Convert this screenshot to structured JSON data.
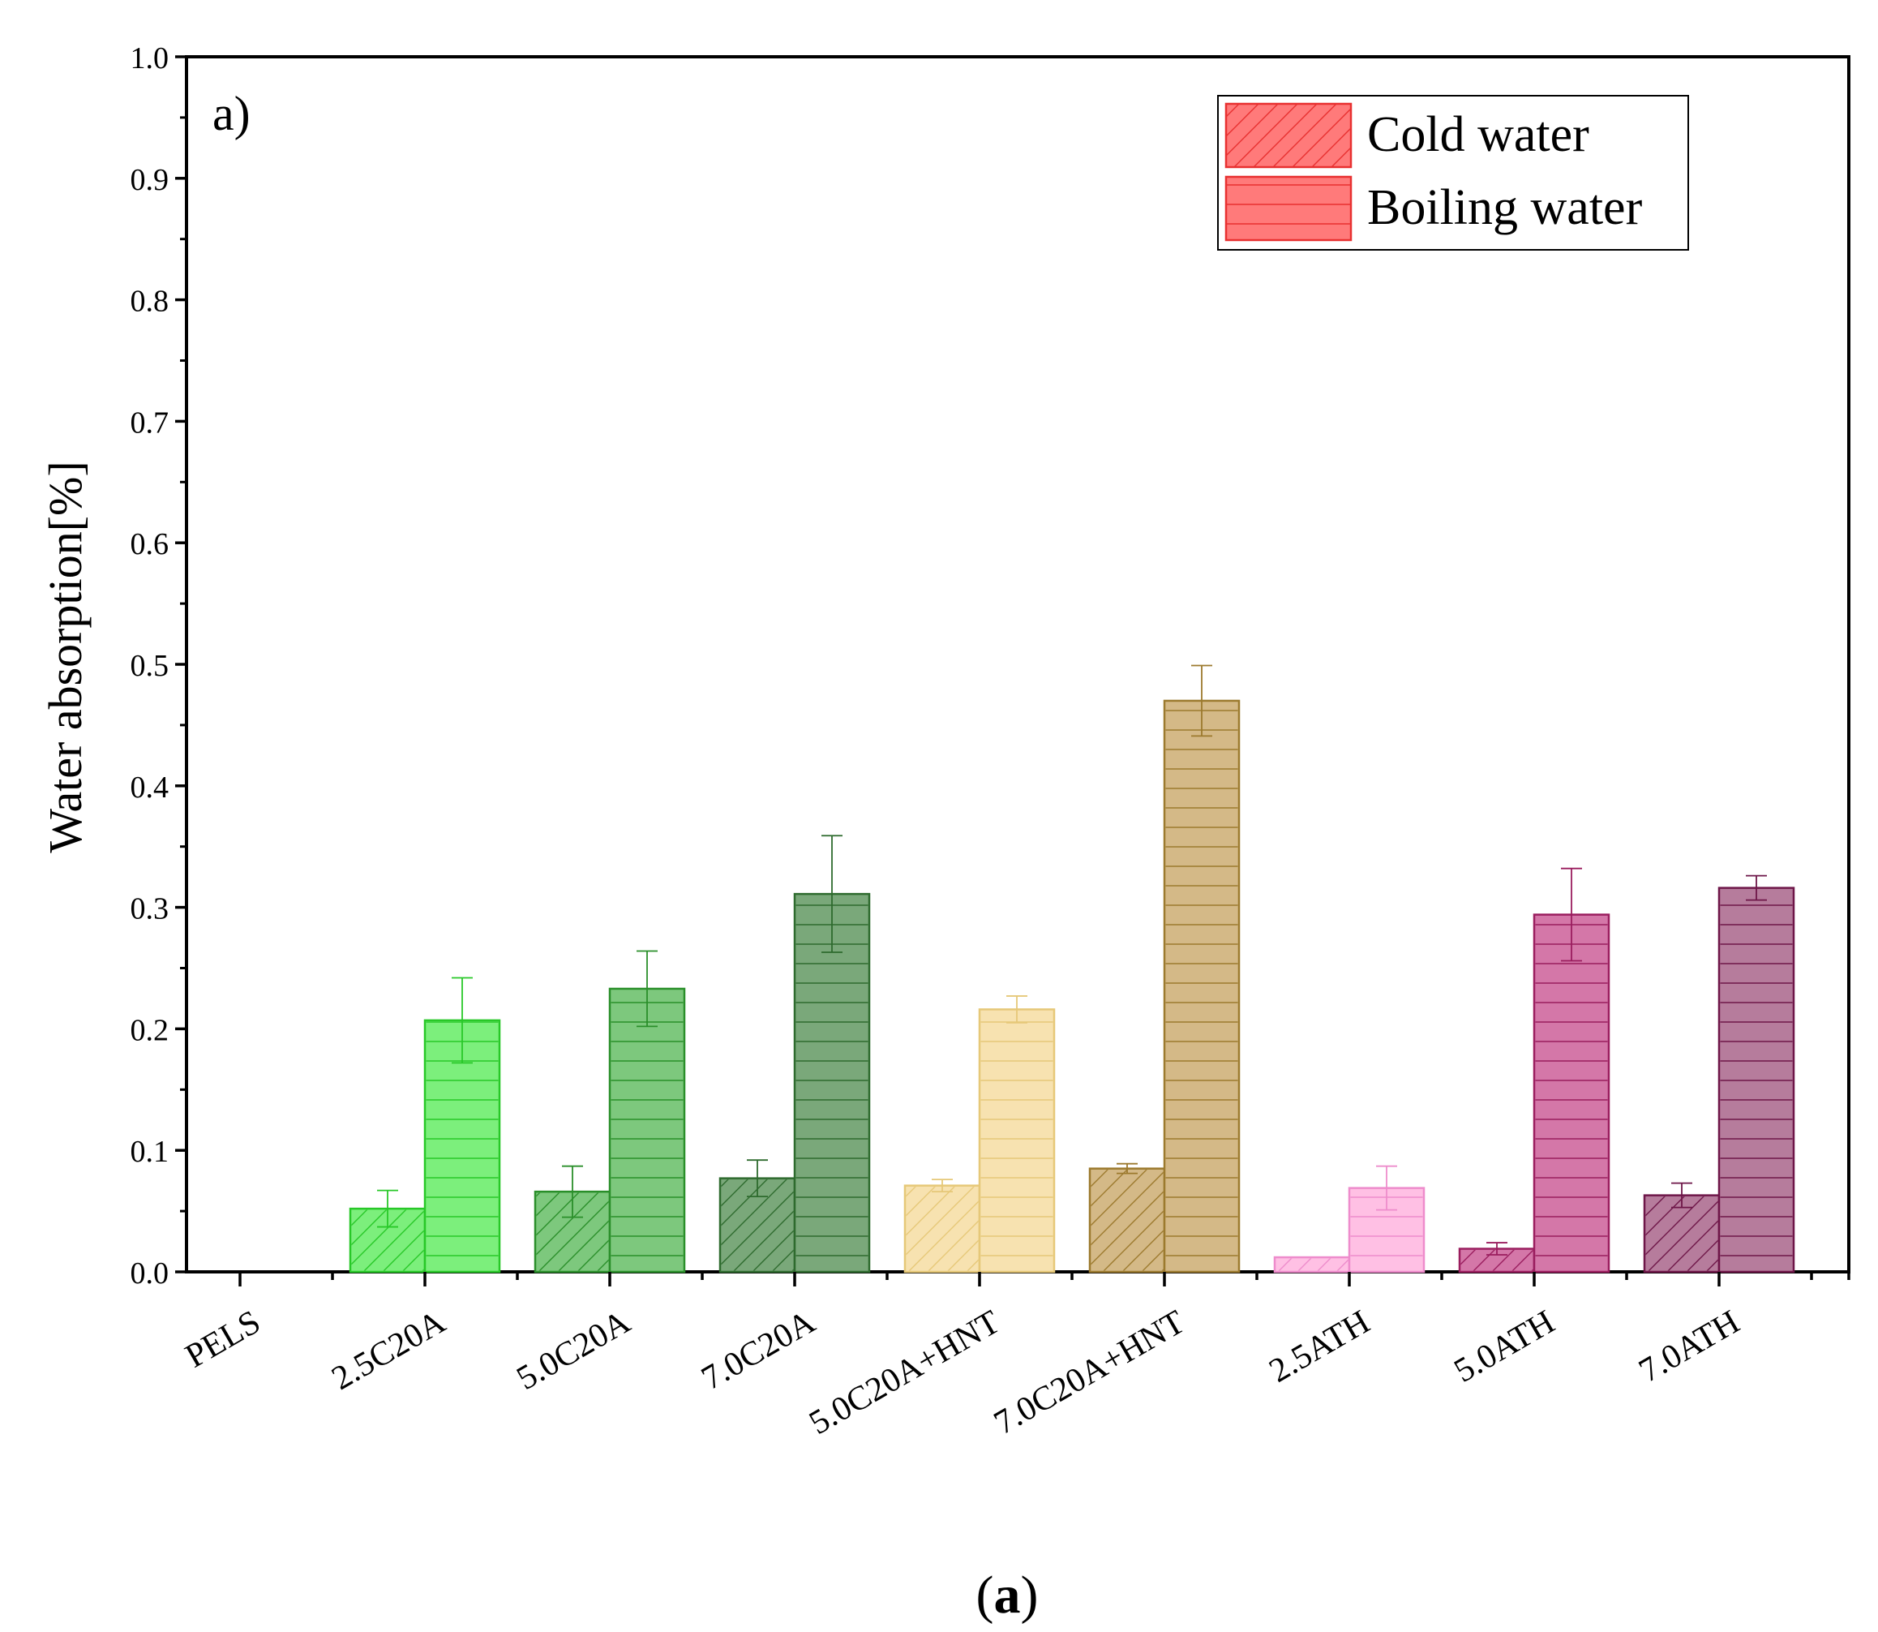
{
  "chart_data": {
    "type": "bar",
    "panel_label": "a)",
    "caption_open": "(",
    "caption_letter": "a",
    "caption_close": ")",
    "ylabel": "Water absorption[%]",
    "xlabel": "",
    "ylim": [
      0,
      1.0
    ],
    "yticks": [
      "0.0",
      "0.1",
      "0.2",
      "0.3",
      "0.4",
      "0.5",
      "0.6",
      "0.7",
      "0.8",
      "0.9",
      "1.0"
    ],
    "categories": [
      "PELS",
      "2.5C20A",
      "5.0C20A",
      "7.0C20A",
      "5.0C20A+HNT",
      "7.0C20A+HNT",
      "2.5ATH",
      "5.0ATH",
      "7.0ATH"
    ],
    "category_colors": [
      {
        "fill": "#cccccc",
        "stroke": "#888888"
      },
      {
        "fill": "#7cef7c",
        "stroke": "#28c828"
      },
      {
        "fill": "#7dc87d",
        "stroke": "#2a8f2a"
      },
      {
        "fill": "#7aa87a",
        "stroke": "#2e6b2e"
      },
      {
        "fill": "#f7e2b0",
        "stroke": "#e6c878"
      },
      {
        "fill": "#d4b987",
        "stroke": "#9c7a2e"
      },
      {
        "fill": "#ffc0e4",
        "stroke": "#ee8ccc"
      },
      {
        "fill": "#d477a8",
        "stroke": "#9a1d5e"
      },
      {
        "fill": "#b67c9c",
        "stroke": "#6e1648"
      }
    ],
    "series": [
      {
        "name": "Cold water",
        "pattern": "diagonal",
        "values": [
          0,
          0.052,
          0.066,
          0.077,
          0.071,
          0.085,
          0.012,
          0.019,
          0.063
        ],
        "errors": [
          0,
          0.015,
          0.021,
          0.015,
          0.005,
          0.004,
          0,
          0.005,
          0.01
        ]
      },
      {
        "name": "Boiling water",
        "pattern": "horizontal",
        "values": [
          0,
          0.207,
          0.233,
          0.311,
          0.216,
          0.47,
          0.069,
          0.294,
          0.316
        ],
        "errors": [
          0,
          0.035,
          0.031,
          0.048,
          0.011,
          0.029,
          0.018,
          0.038,
          0.01
        ]
      }
    ],
    "legend": {
      "position": "top-right",
      "entries": [
        "Cold water",
        "Boiling water"
      ],
      "color": "#ff7a7a",
      "stroke": "#e83030"
    }
  }
}
